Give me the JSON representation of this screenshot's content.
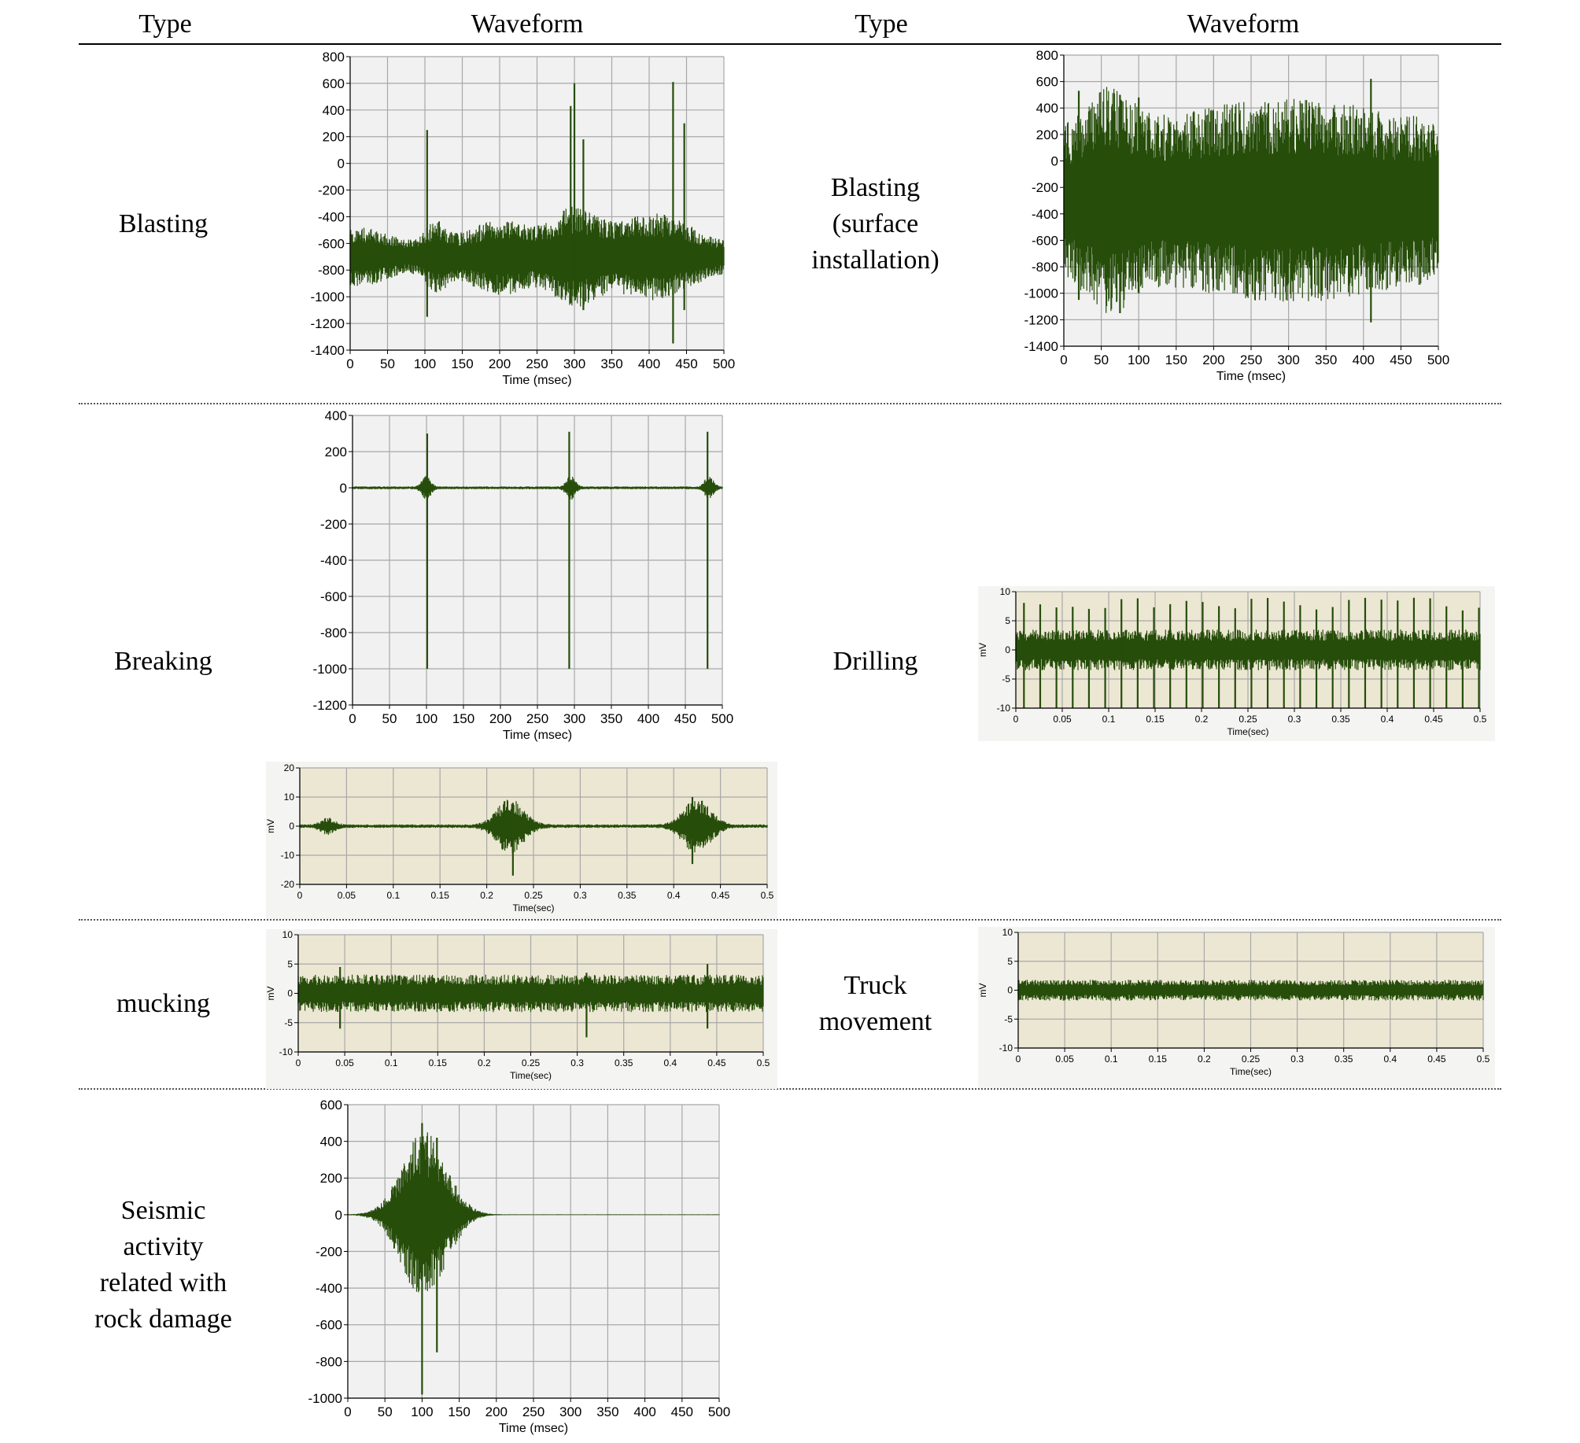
{
  "headers": {
    "type_left": "Type",
    "waveform_left": "Waveform",
    "type_right": "Type",
    "waveform_right": "Waveform"
  },
  "labels": {
    "blasting": "Blasting",
    "blasting_surface": "Blasting\n(surface\ninstallation)",
    "breaking": "Breaking",
    "drilling": "Drilling",
    "mucking": "mucking",
    "truck": "Truck\nmovement",
    "seismic": "Seismic\nactivity\nrelated  with\nrock  damage"
  },
  "colors": {
    "waveform": "#264d0a",
    "msec_bg": "#f1f1f1",
    "sec_bg": "#ece7d3",
    "grid": "#a8a8a8"
  },
  "chart_data": [
    {
      "id": "blasting",
      "type": "line",
      "xlabel": "Time (msec)",
      "ylabel": "",
      "xlim": [
        0,
        500
      ],
      "ylim": [
        -1400,
        800
      ],
      "xticks": [
        0,
        50,
        100,
        150,
        200,
        250,
        300,
        350,
        400,
        450,
        500
      ],
      "yticks": [
        800,
        600,
        400,
        200,
        0,
        -200,
        -400,
        -600,
        -800,
        -1000,
        -1200,
        -1400
      ],
      "signal": {
        "baseline": -700,
        "noise": 90,
        "bursts": [
          [
            5,
            60,
            140
          ],
          [
            115,
            20,
            160
          ],
          [
            200,
            55,
            200
          ],
          [
            300,
            40,
            260
          ],
          [
            405,
            70,
            240
          ]
        ],
        "spikes": [
          [
            103,
            250,
            -1150
          ],
          [
            295,
            430,
            -1050
          ],
          [
            300,
            600,
            -1000
          ],
          [
            312,
            180,
            -1100
          ],
          [
            432,
            610,
            -1350
          ],
          [
            447,
            300,
            -1100
          ]
        ]
      }
    },
    {
      "id": "blasting_surface",
      "type": "line",
      "xlabel": "Time (msec)",
      "ylabel": "",
      "xlim": [
        0,
        500
      ],
      "ylim": [
        -1400,
        800
      ],
      "xticks": [
        0,
        50,
        100,
        150,
        200,
        250,
        300,
        350,
        400,
        450,
        500
      ],
      "yticks": [
        800,
        600,
        400,
        200,
        0,
        -200,
        -400,
        -600,
        -800,
        -1000,
        -1200,
        -1400
      ],
      "signal": {
        "baseline": -300,
        "noise": 520,
        "bursts": [
          [
            60,
            40,
            300
          ],
          [
            300,
            200,
            250
          ]
        ],
        "spikes": [
          [
            20,
            530,
            -1050
          ],
          [
            75,
            500,
            -1150
          ],
          [
            100,
            480,
            -1000
          ],
          [
            410,
            620,
            -1220
          ]
        ]
      }
    },
    {
      "id": "breaking_msec",
      "type": "line",
      "xlabel": "Time (msec)",
      "ylabel": "",
      "xlim": [
        0,
        500
      ],
      "ylim": [
        -1200,
        400
      ],
      "xticks": [
        0,
        50,
        100,
        150,
        200,
        250,
        300,
        350,
        400,
        450,
        500
      ],
      "yticks": [
        400,
        200,
        0,
        -200,
        -400,
        -600,
        -800,
        -1000,
        -1200
      ],
      "signal": {
        "baseline": 0,
        "noise": 8,
        "bursts": [
          [
            100,
            8,
            60
          ],
          [
            295,
            8,
            60
          ],
          [
            482,
            8,
            60
          ]
        ],
        "spikes": [
          [
            101,
            300,
            -1000
          ],
          [
            293,
            310,
            -1000
          ],
          [
            480,
            310,
            -1000
          ]
        ]
      }
    },
    {
      "id": "breaking_sec",
      "type": "line",
      "xlabel": "Time(sec)",
      "ylabel": "mV",
      "xlim": [
        0,
        0.5
      ],
      "ylim": [
        -20,
        20
      ],
      "xticks": [
        0,
        0.05,
        0.1,
        0.15,
        0.2,
        0.25,
        0.3,
        0.35,
        0.4,
        0.45,
        0.5
      ],
      "yticks": [
        20,
        10,
        0,
        -10,
        -20
      ],
      "signal": {
        "baseline": 0,
        "noise": 0.6,
        "bursts": [
          [
            0.03,
            0.01,
            2.5
          ],
          [
            0.225,
            0.02,
            9
          ],
          [
            0.425,
            0.02,
            9
          ]
        ],
        "spikes": [
          [
            0.228,
            8,
            -17
          ],
          [
            0.42,
            10,
            -13
          ]
        ]
      }
    },
    {
      "id": "drilling",
      "type": "line",
      "xlabel": "Time(sec)",
      "ylabel": "mV",
      "xlim": [
        0,
        0.5
      ],
      "ylim": [
        -10,
        10
      ],
      "xticks": [
        0,
        0.05,
        0.1,
        0.15,
        0.2,
        0.25,
        0.3,
        0.35,
        0.4,
        0.45,
        0.5
      ],
      "yticks": [
        10,
        5,
        0,
        -5,
        -10
      ],
      "signal": {
        "baseline": 0,
        "noise": 3.5,
        "periodic": [
          0.0175,
          9,
          -10
        ]
      }
    },
    {
      "id": "mucking",
      "type": "line",
      "xlabel": "Time(sec)",
      "ylabel": "mV",
      "xlim": [
        0,
        0.5
      ],
      "ylim": [
        -10,
        10
      ],
      "xticks": [
        0,
        0.05,
        0.1,
        0.15,
        0.2,
        0.25,
        0.3,
        0.35,
        0.4,
        0.45,
        0.5
      ],
      "yticks": [
        10,
        5,
        0,
        -5,
        -10
      ],
      "signal": {
        "baseline": 0,
        "noise": 3.2,
        "spikes": [
          [
            0.045,
            4.5,
            -6
          ],
          [
            0.31,
            3.5,
            -7.5
          ],
          [
            0.44,
            5,
            -6
          ]
        ]
      }
    },
    {
      "id": "truck",
      "type": "line",
      "xlabel": "Time(sec)",
      "ylabel": "mV",
      "xlim": [
        0,
        0.5
      ],
      "ylim": [
        -10,
        10
      ],
      "xticks": [
        0,
        0.05,
        0.1,
        0.15,
        0.2,
        0.25,
        0.3,
        0.35,
        0.4,
        0.45,
        0.5
      ],
      "yticks": [
        10,
        5,
        0,
        -5,
        -10
      ],
      "signal": {
        "baseline": 0,
        "noise": 1.8
      }
    },
    {
      "id": "seismic",
      "type": "line",
      "xlabel": "Time (msec)",
      "ylabel": "",
      "xlim": [
        0,
        500
      ],
      "ylim": [
        -1000,
        600
      ],
      "xticks": [
        0,
        50,
        100,
        150,
        200,
        250,
        300,
        350,
        400,
        450,
        500
      ],
      "yticks": [
        600,
        400,
        200,
        0,
        -200,
        -400,
        -600,
        -800,
        -1000
      ],
      "signal": {
        "baseline": 0,
        "noise": 2,
        "bursts": [
          [
            100,
            40,
            450
          ],
          [
            140,
            30,
            40
          ]
        ],
        "spikes": [
          [
            100,
            500,
            -980
          ],
          [
            120,
            420,
            -750
          ]
        ]
      }
    }
  ]
}
